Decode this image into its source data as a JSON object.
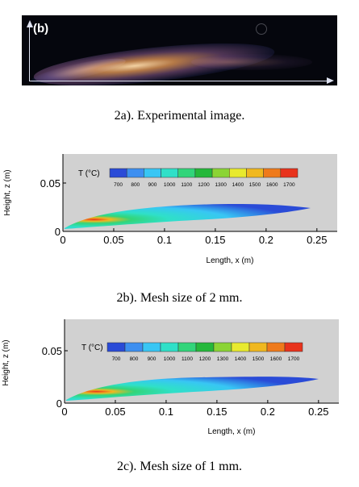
{
  "figure_a": {
    "panel_tag": "(b)",
    "caption": "2a). Experimental image."
  },
  "figure_b": {
    "caption": "2b). Mesh size of 2 mm.",
    "colorbar_title": "T (°C)",
    "colorbar_ticks": [
      "700",
      "800",
      "900",
      "1000",
      "1100",
      "1200",
      "1300",
      "1400",
      "1500",
      "1600",
      "1700"
    ],
    "colorbar_colors": [
      "#2a4bd7",
      "#3d8ff0",
      "#38c6f4",
      "#2fe0c8",
      "#32d57a",
      "#25b83b",
      "#8bd435",
      "#e8ea2e",
      "#f0b81f",
      "#ef7a1b",
      "#e8331c"
    ]
  },
  "figure_c": {
    "caption": "2c). Mesh size of 1 mm."
  },
  "chart_data": [
    {
      "type": "heatmap",
      "title": "",
      "xlabel": "Length, x (m)",
      "ylabel": "Height, z (m)",
      "xlim": [
        0,
        0.27
      ],
      "ylim": [
        0,
        0.08
      ],
      "x_ticks": [
        "0",
        "0.05",
        "0.1",
        "0.15",
        "0.2",
        "0.25"
      ],
      "y_ticks": [
        "0",
        "0.05"
      ],
      "colorbar": {
        "label": "T (°C)",
        "values": [
          700,
          800,
          900,
          1000,
          1100,
          1200,
          1300,
          1400,
          1500,
          1600,
          1700
        ]
      },
      "flame_length": 0.23
    },
    {
      "type": "heatmap",
      "title": "",
      "xlabel": "Length, x (m)",
      "ylabel": "Height, z (m)",
      "xlim": [
        0,
        0.27
      ],
      "ylim": [
        0,
        0.08
      ],
      "x_ticks": [
        "0",
        "0.05",
        "0.1",
        "0.15",
        "0.2",
        "0.25"
      ],
      "y_ticks": [
        "0",
        "0.05"
      ],
      "colorbar": {
        "label": "T (°C)",
        "values": [
          700,
          800,
          900,
          1000,
          1100,
          1200,
          1300,
          1400,
          1500,
          1600,
          1700
        ]
      },
      "flame_length": 0.24
    }
  ]
}
